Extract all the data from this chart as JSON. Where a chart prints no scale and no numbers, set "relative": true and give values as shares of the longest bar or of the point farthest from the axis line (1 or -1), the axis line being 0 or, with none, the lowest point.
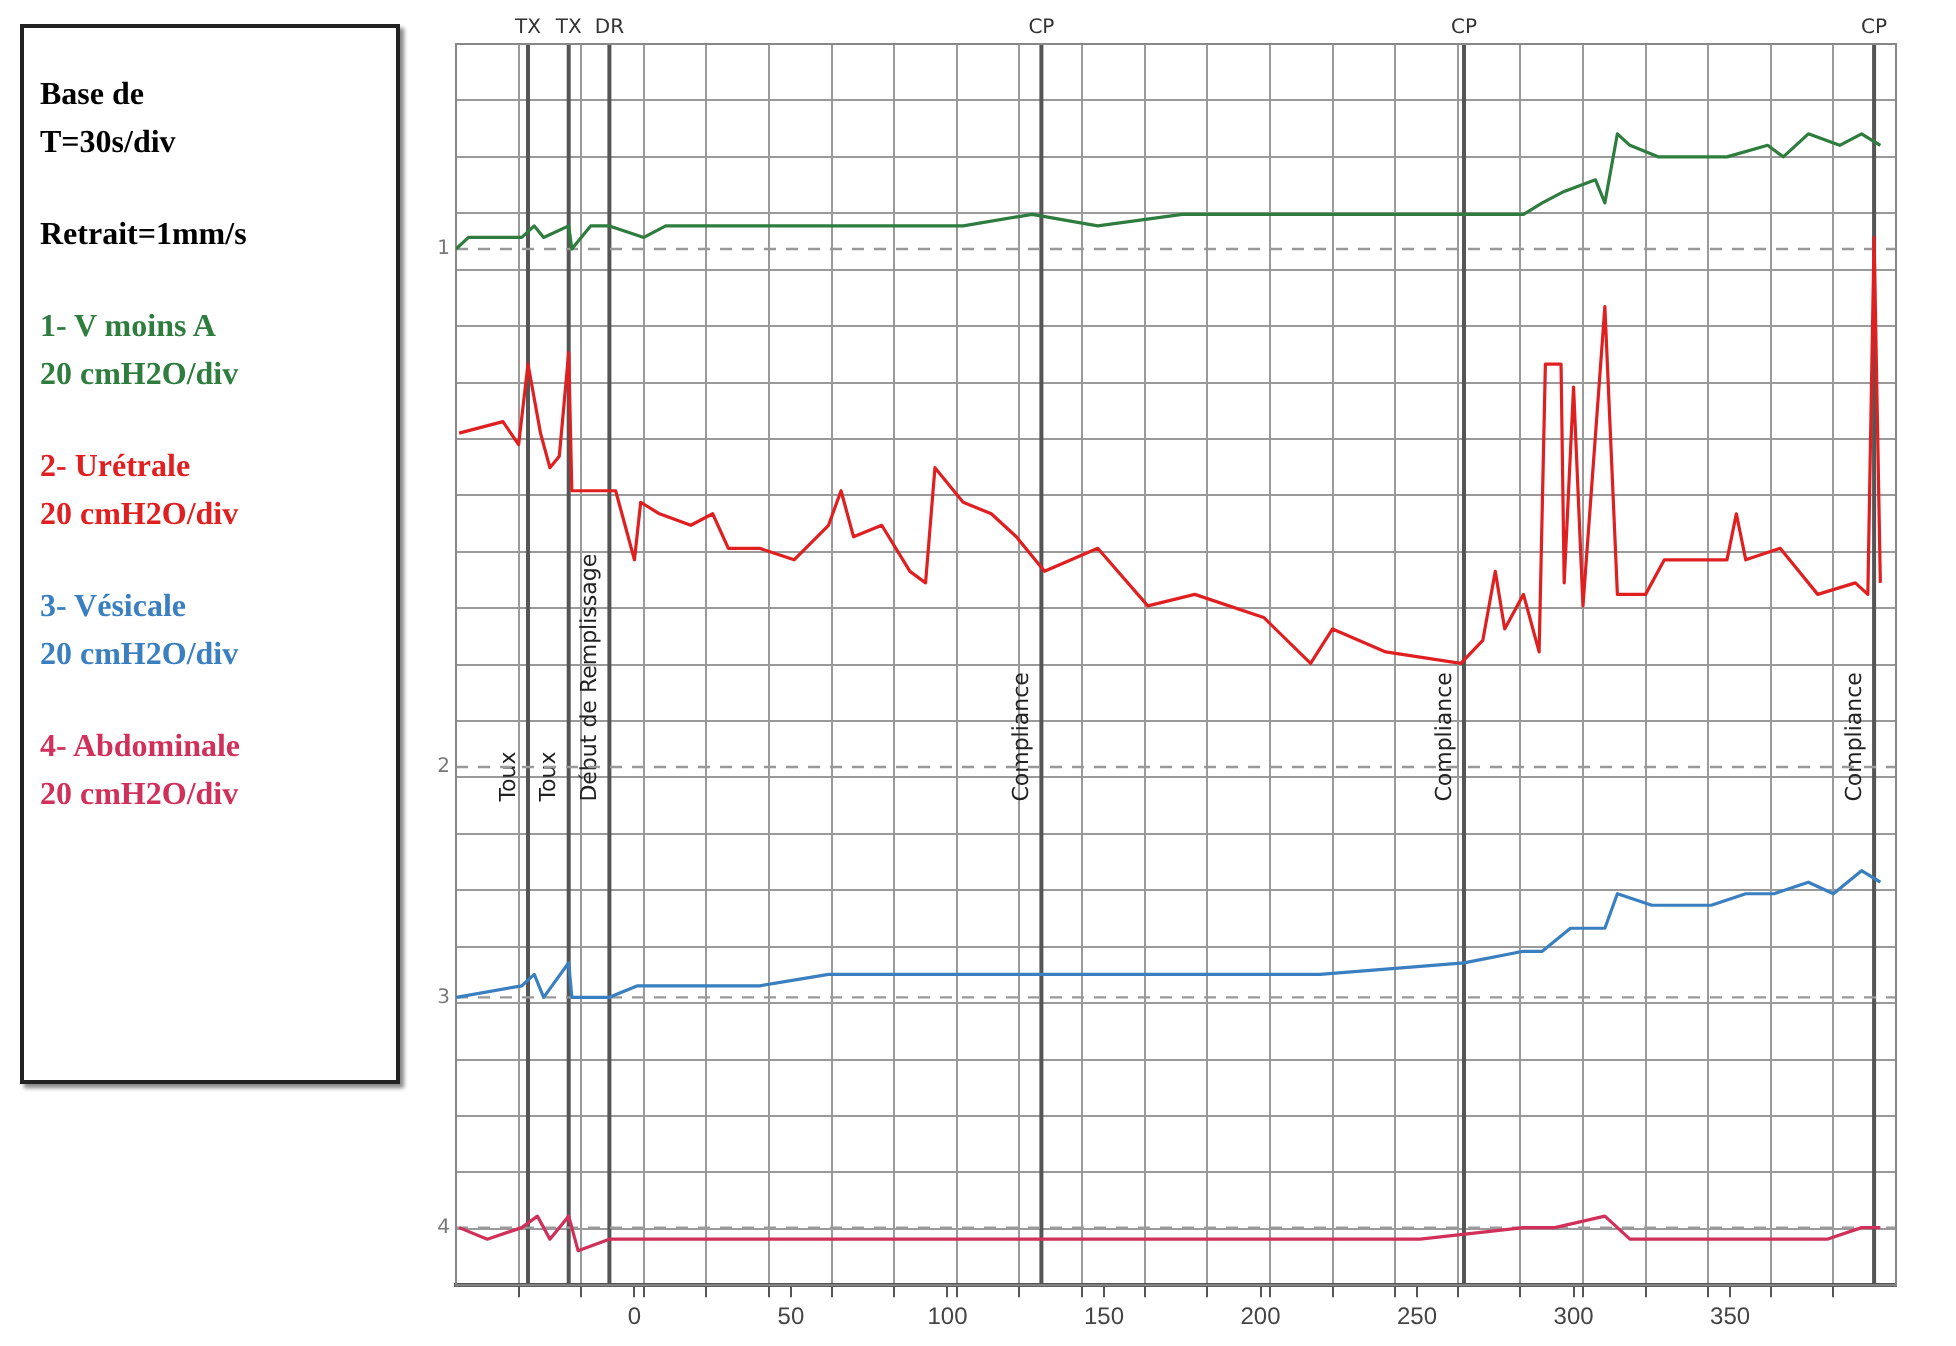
{
  "chart_data": {
    "type": "line",
    "relative": true,
    "xlim": [
      -57,
      403
    ],
    "xticks": [
      {
        "value": -37,
        "label": null
      },
      {
        "value": -17,
        "label": null
      },
      0,
      {
        "value": 3,
        "label": null
      },
      {
        "value": 23,
        "label": null
      },
      {
        "value": 43,
        "label": null
      },
      50,
      {
        "value": 63,
        "label": null
      },
      {
        "value": 83,
        "label": null
      },
      100,
      {
        "value": 103,
        "label": null
      },
      {
        "value": 123,
        "label": null
      },
      {
        "value": 143,
        "label": null
      },
      150,
      {
        "value": 163,
        "label": null
      },
      {
        "value": 183,
        "label": null
      },
      200,
      {
        "value": 203,
        "label": null
      },
      {
        "value": 223,
        "label": null
      },
      {
        "value": 243,
        "label": null
      },
      250,
      {
        "value": 263,
        "label": null
      },
      {
        "value": 283,
        "label": null
      },
      300,
      {
        "value": 303,
        "label": null
      },
      {
        "value": 323,
        "label": null
      },
      {
        "value": 343,
        "label": null
      },
      350,
      {
        "value": 363,
        "label": null
      },
      {
        "value": 383,
        "label": null
      }
    ],
    "grid": true,
    "marker": "none",
    "line_style": "solid",
    "legend": "left",
    "tick_labels": "x",
    "series": [
      {
        "name": "1- V moins A\n20 cmH2O/div",
        "color": "#2e7d3e",
        "x": [
          -57,
          -53,
          -47,
          -36,
          -32,
          -29,
          -21,
          -20,
          -14,
          -8,
          3,
          10,
          18,
          29,
          44,
          62,
          83,
          105,
          127,
          148,
          175,
          219,
          265,
          284,
          290,
          297,
          307,
          310,
          314,
          318,
          327,
          349,
          362,
          367,
          375,
          385,
          392,
          398
        ],
        "values": [
          0.9,
          0.91,
          0.91,
          0.91,
          0.92,
          0.91,
          0.92,
          0.9,
          0.92,
          0.92,
          0.91,
          0.92,
          0.92,
          0.92,
          0.92,
          0.92,
          0.92,
          0.92,
          0.93,
          0.92,
          0.93,
          0.93,
          0.93,
          0.93,
          0.94,
          0.95,
          0.96,
          0.94,
          1.0,
          0.99,
          0.98,
          0.98,
          0.99,
          0.98,
          1.0,
          0.99,
          1.0,
          0.99
        ]
      },
      {
        "name": "2- Urétrale\n20 cmH2O/div",
        "color": "#e02020",
        "x": [
          -56,
          -42,
          -37,
          -34,
          -30,
          -27,
          -24,
          -21,
          -20,
          -12,
          -6,
          -3,
          0,
          2,
          8,
          18,
          25,
          30,
          40,
          51,
          62,
          66,
          70,
          79,
          88,
          93,
          96,
          105,
          114,
          122,
          131,
          148,
          164,
          179,
          201,
          216,
          223,
          240,
          264,
          271,
          275,
          278,
          284,
          289,
          291,
          296,
          297,
          300,
          303,
          310,
          314,
          323,
          329,
          349,
          352,
          355,
          366,
          378,
          390,
          394,
          396,
          398
        ],
        "values": [
          0.74,
          0.75,
          0.73,
          0.8,
          0.74,
          0.71,
          0.72,
          0.81,
          0.69,
          0.69,
          0.69,
          0.66,
          0.63,
          0.68,
          0.67,
          0.66,
          0.67,
          0.64,
          0.64,
          0.63,
          0.66,
          0.69,
          0.65,
          0.66,
          0.62,
          0.61,
          0.71,
          0.68,
          0.67,
          0.65,
          0.62,
          0.64,
          0.59,
          0.6,
          0.58,
          0.54,
          0.57,
          0.55,
          0.54,
          0.56,
          0.62,
          0.57,
          0.6,
          0.55,
          0.8,
          0.8,
          0.61,
          0.78,
          0.59,
          0.85,
          0.6,
          0.6,
          0.63,
          0.63,
          0.67,
          0.63,
          0.64,
          0.6,
          0.61,
          0.6,
          0.91,
          0.61
        ]
      },
      {
        "name": "3- Vésicale\n20 cmH2O/div",
        "color": "#3a7fc0",
        "x": [
          -57,
          -36,
          -32,
          -29,
          -21,
          -20,
          -8,
          1,
          18,
          40,
          62,
          94,
          127,
          148,
          179,
          219,
          265,
          284,
          290,
          299,
          310,
          314,
          325,
          344,
          355,
          364,
          375,
          383,
          392,
          398
        ],
        "values": [
          0.25,
          0.26,
          0.27,
          0.25,
          0.28,
          0.25,
          0.25,
          0.26,
          0.26,
          0.26,
          0.27,
          0.27,
          0.27,
          0.27,
          0.27,
          0.27,
          0.28,
          0.29,
          0.29,
          0.31,
          0.31,
          0.34,
          0.33,
          0.33,
          0.34,
          0.34,
          0.35,
          0.34,
          0.36,
          0.35
        ]
      },
      {
        "name": "4- Abdominale\n20 cmH2O/div",
        "color": "#d0305a",
        "x": [
          -56,
          -47,
          -36,
          -31,
          -27,
          -21,
          -18,
          -8,
          8,
          29,
          62,
          105,
          148,
          179,
          219,
          251,
          284,
          294,
          310,
          318,
          359,
          381,
          392,
          398
        ],
        "values": [
          0.05,
          0.04,
          0.05,
          0.06,
          0.04,
          0.06,
          0.03,
          0.04,
          0.04,
          0.04,
          0.04,
          0.04,
          0.04,
          0.04,
          0.04,
          0.04,
          0.05,
          0.05,
          0.06,
          0.04,
          0.04,
          0.04,
          0.05,
          0.05
        ]
      }
    ],
    "ref_lines": [
      {
        "axis": "x",
        "value": -34,
        "label": "Toux",
        "color": "#555555"
      },
      {
        "axis": "x",
        "value": -21,
        "label": "Toux",
        "color": "#555555"
      },
      {
        "axis": "x",
        "value": -8,
        "label": "Début de Remplissage",
        "color": "#555555"
      },
      {
        "axis": "x",
        "value": 130,
        "label": "Compliance",
        "color": "#555555"
      },
      {
        "axis": "x",
        "value": 265,
        "label": "Compliance",
        "color": "#555555"
      },
      {
        "axis": "x",
        "value": 396,
        "label": "Compliance",
        "color": "#555555"
      },
      {
        "axis": "y",
        "value": 0.9,
        "color": "#999999",
        "line_style": "dashed"
      },
      {
        "axis": "y",
        "value": 0.45,
        "color": "#999999",
        "line_style": "dashed"
      },
      {
        "axis": "y",
        "value": 0.25,
        "color": "#999999",
        "line_style": "dashed"
      },
      {
        "axis": "y",
        "value": 0.05,
        "color": "#999999",
        "line_style": "dashed"
      }
    ],
    "annotations": [
      "Base de\nT=30s/div",
      "Retrait=1mm/s",
      "TX",
      "TX",
      "DR",
      "CP",
      "CP",
      "CP",
      "1",
      "2",
      "3",
      "4"
    ]
  }
}
